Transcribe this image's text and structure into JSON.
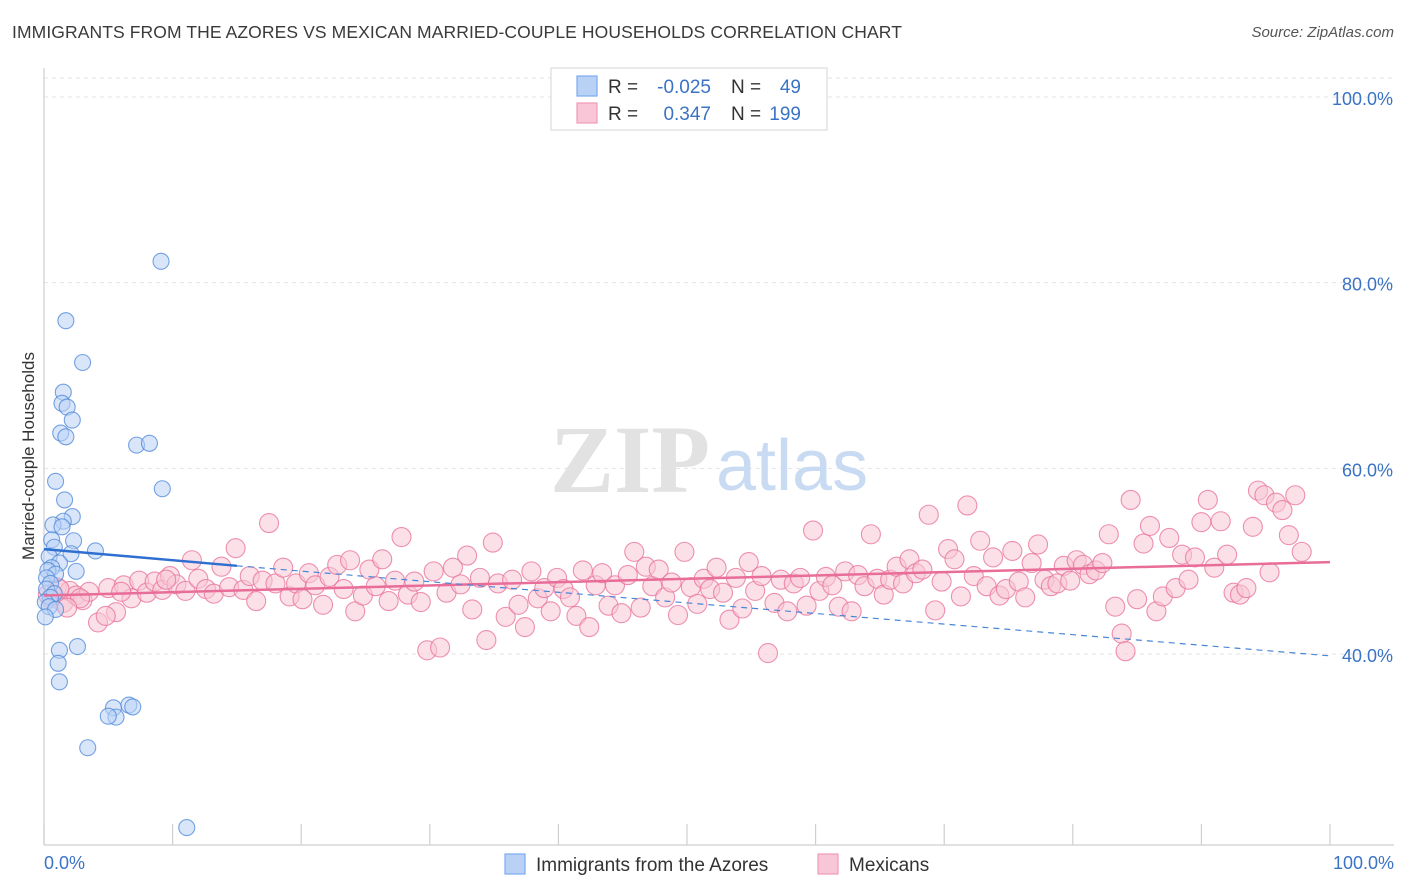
{
  "header": {
    "title": "IMMIGRANTS FROM THE AZORES VS MEXICAN MARRIED-COUPLE HOUSEHOLDS CORRELATION CHART",
    "source": "Source: ZipAtlas.com"
  },
  "watermark": {
    "zip": "ZIP",
    "atlas": "atlas"
  },
  "stats_legend": [
    {
      "series": "Immigrants from the Azores",
      "r_label": "R =",
      "r_value": "-0.025",
      "n_label": "N =",
      "n_value": "49",
      "color": "#7aaaf0",
      "fill": "#b9d1f5"
    },
    {
      "series": "Mexicans",
      "r_label": "R =",
      "r_value": "0.347",
      "n_label": "N =",
      "n_value": "199",
      "color": "#f09bb7",
      "fill": "#f8c6d6"
    }
  ],
  "chart_data": {
    "type": "scatter",
    "title": "IMMIGRANTS FROM THE AZORES VS MEXICAN MARRIED-COUPLE HOUSEHOLDS CORRELATION CHART",
    "xlabel": "",
    "ylabel": "Married-couple Households",
    "xlim": [
      0,
      100
    ],
    "ylim": [
      20,
      103
    ],
    "x_tick_labels": [
      "0.0%",
      "100.0%"
    ],
    "y_ticks": [
      40,
      60,
      80,
      100
    ],
    "y_tick_labels": [
      "40.0%",
      "60.0%",
      "80.0%",
      "100.0%"
    ],
    "grid": true,
    "legend": "top-center and bottom-center",
    "series": [
      {
        "name": "Immigrants from the Azores",
        "color": "#4a86d8",
        "fill": "#b9d1f5",
        "points": [
          [
            9.1,
            82.3
          ],
          [
            1.7,
            75.9
          ],
          [
            3.0,
            71.4
          ],
          [
            1.5,
            68.2
          ],
          [
            1.4,
            67.0
          ],
          [
            1.8,
            66.6
          ],
          [
            2.2,
            65.2
          ],
          [
            1.3,
            63.8
          ],
          [
            1.7,
            63.4
          ],
          [
            7.2,
            62.5
          ],
          [
            8.2,
            62.7
          ],
          [
            0.9,
            58.6
          ],
          [
            9.2,
            57.8
          ],
          [
            1.6,
            56.6
          ],
          [
            2.2,
            54.8
          ],
          [
            1.5,
            54.3
          ],
          [
            0.7,
            53.9
          ],
          [
            1.4,
            53.7
          ],
          [
            0.6,
            52.3
          ],
          [
            2.3,
            52.2
          ],
          [
            0.8,
            51.5
          ],
          [
            4.0,
            51.1
          ],
          [
            2.1,
            50.8
          ],
          [
            0.4,
            50.5
          ],
          [
            1.2,
            49.8
          ],
          [
            0.6,
            49.3
          ],
          [
            0.3,
            49.0
          ],
          [
            2.5,
            48.9
          ],
          [
            0.9,
            48.6
          ],
          [
            0.2,
            48.2
          ],
          [
            0.5,
            47.6
          ],
          [
            0.2,
            47.0
          ],
          [
            0.8,
            46.5
          ],
          [
            0.5,
            46.1
          ],
          [
            0.1,
            45.6
          ],
          [
            0.4,
            45.1
          ],
          [
            0.9,
            44.8
          ],
          [
            0.1,
            44.0
          ],
          [
            2.6,
            40.8
          ],
          [
            1.2,
            40.4
          ],
          [
            1.1,
            39.0
          ],
          [
            1.2,
            37.0
          ],
          [
            6.6,
            34.5
          ],
          [
            6.9,
            34.3
          ],
          [
            5.4,
            34.2
          ],
          [
            5.6,
            33.2
          ],
          [
            5.0,
            33.3
          ],
          [
            3.4,
            29.9
          ],
          [
            11.1,
            21.3
          ]
        ],
        "trend_solid": {
          "x": [
            0,
            15
          ],
          "y": [
            51.3,
            49.5
          ]
        },
        "trend_dashed": {
          "x": [
            15,
            100
          ],
          "y": [
            49.5,
            39.8
          ]
        }
      },
      {
        "name": "Mexicans",
        "color": "#e86d98",
        "fill": "#f8c6d6",
        "points": [
          [
            0.5,
            46.0
          ],
          [
            1.0,
            47.2
          ],
          [
            1.5,
            45.5
          ],
          [
            2.0,
            46.8
          ],
          [
            2.5,
            46.3
          ],
          [
            3.0,
            45.8
          ],
          [
            3.5,
            46.7
          ],
          [
            4.2,
            43.4
          ],
          [
            5.0,
            47.1
          ],
          [
            5.6,
            44.5
          ],
          [
            6.2,
            47.4
          ],
          [
            6.8,
            46.0
          ],
          [
            7.4,
            47.9
          ],
          [
            8.0,
            46.6
          ],
          [
            8.6,
            47.8
          ],
          [
            9.2,
            46.9
          ],
          [
            9.8,
            48.4
          ],
          [
            10.3,
            47.5
          ],
          [
            11.0,
            46.8
          ],
          [
            11.5,
            50.1
          ],
          [
            12.0,
            48.1
          ],
          [
            12.6,
            47.0
          ],
          [
            13.2,
            46.5
          ],
          [
            13.8,
            49.4
          ],
          [
            14.4,
            47.2
          ],
          [
            14.9,
            51.4
          ],
          [
            15.5,
            46.9
          ],
          [
            16.0,
            48.4
          ],
          [
            16.5,
            45.7
          ],
          [
            17.0,
            47.9
          ],
          [
            17.5,
            54.1
          ],
          [
            18.0,
            47.6
          ],
          [
            18.6,
            49.3
          ],
          [
            19.1,
            46.2
          ],
          [
            19.6,
            47.6
          ],
          [
            20.1,
            45.9
          ],
          [
            20.6,
            48.7
          ],
          [
            21.1,
            47.4
          ],
          [
            21.7,
            45.3
          ],
          [
            22.2,
            48.3
          ],
          [
            22.8,
            49.6
          ],
          [
            23.3,
            47.0
          ],
          [
            23.8,
            50.1
          ],
          [
            24.2,
            44.6
          ],
          [
            24.8,
            46.3
          ],
          [
            25.3,
            49.1
          ],
          [
            25.8,
            47.3
          ],
          [
            26.3,
            50.2
          ],
          [
            26.8,
            45.7
          ],
          [
            27.3,
            47.9
          ],
          [
            27.8,
            52.6
          ],
          [
            28.3,
            46.4
          ],
          [
            28.8,
            47.8
          ],
          [
            29.3,
            45.6
          ],
          [
            29.8,
            40.4
          ],
          [
            30.3,
            48.9
          ],
          [
            30.8,
            40.7
          ],
          [
            31.3,
            46.6
          ],
          [
            31.8,
            49.3
          ],
          [
            32.4,
            47.5
          ],
          [
            32.9,
            50.6
          ],
          [
            33.3,
            44.8
          ],
          [
            33.9,
            48.2
          ],
          [
            34.4,
            41.5
          ],
          [
            34.9,
            52.0
          ],
          [
            35.3,
            47.6
          ],
          [
            35.9,
            44.0
          ],
          [
            36.4,
            48.0
          ],
          [
            36.9,
            45.3
          ],
          [
            37.4,
            42.9
          ],
          [
            37.9,
            48.9
          ],
          [
            38.4,
            46.0
          ],
          [
            38.9,
            47.1
          ],
          [
            39.4,
            44.6
          ],
          [
            39.9,
            48.2
          ],
          [
            40.4,
            47.0
          ],
          [
            40.9,
            46.1
          ],
          [
            41.4,
            44.1
          ],
          [
            41.9,
            49.0
          ],
          [
            42.4,
            42.9
          ],
          [
            42.9,
            47.4
          ],
          [
            43.4,
            48.7
          ],
          [
            43.9,
            45.2
          ],
          [
            44.4,
            47.4
          ],
          [
            44.9,
            44.4
          ],
          [
            45.4,
            48.5
          ],
          [
            45.9,
            51.0
          ],
          [
            46.4,
            45.0
          ],
          [
            46.8,
            49.4
          ],
          [
            47.3,
            47.3
          ],
          [
            47.8,
            49.1
          ],
          [
            48.3,
            46.1
          ],
          [
            48.8,
            47.7
          ],
          [
            49.3,
            44.2
          ],
          [
            49.8,
            51.0
          ],
          [
            50.3,
            47.2
          ],
          [
            50.8,
            45.4
          ],
          [
            51.3,
            48.1
          ],
          [
            51.8,
            47.0
          ],
          [
            52.3,
            49.3
          ],
          [
            52.8,
            46.6
          ],
          [
            53.3,
            43.7
          ],
          [
            53.8,
            48.2
          ],
          [
            54.3,
            44.9
          ],
          [
            54.8,
            49.9
          ],
          [
            55.3,
            46.8
          ],
          [
            55.8,
            48.4
          ],
          [
            56.3,
            40.1
          ],
          [
            56.8,
            45.5
          ],
          [
            57.3,
            48.0
          ],
          [
            57.8,
            44.6
          ],
          [
            58.3,
            47.6
          ],
          [
            58.8,
            48.2
          ],
          [
            59.3,
            45.2
          ],
          [
            59.8,
            53.3
          ],
          [
            60.3,
            46.8
          ],
          [
            60.8,
            48.3
          ],
          [
            61.3,
            47.4
          ],
          [
            61.8,
            45.1
          ],
          [
            62.3,
            48.9
          ],
          [
            62.8,
            44.6
          ],
          [
            63.3,
            48.5
          ],
          [
            63.8,
            47.3
          ],
          [
            64.3,
            52.9
          ],
          [
            64.8,
            48.1
          ],
          [
            65.3,
            46.4
          ],
          [
            65.8,
            48.0
          ],
          [
            66.3,
            49.4
          ],
          [
            66.8,
            47.6
          ],
          [
            67.3,
            50.2
          ],
          [
            67.8,
            48.7
          ],
          [
            68.3,
            49.1
          ],
          [
            68.8,
            55.0
          ],
          [
            69.3,
            44.7
          ],
          [
            69.8,
            47.8
          ],
          [
            70.3,
            51.3
          ],
          [
            70.8,
            50.2
          ],
          [
            71.3,
            46.2
          ],
          [
            71.8,
            56.0
          ],
          [
            72.3,
            48.4
          ],
          [
            72.8,
            52.2
          ],
          [
            73.3,
            47.3
          ],
          [
            73.8,
            50.4
          ],
          [
            74.3,
            46.3
          ],
          [
            74.8,
            47.0
          ],
          [
            75.3,
            51.1
          ],
          [
            75.8,
            47.8
          ],
          [
            76.3,
            46.1
          ],
          [
            76.8,
            49.8
          ],
          [
            77.3,
            51.8
          ],
          [
            77.8,
            48.0
          ],
          [
            78.3,
            47.3
          ],
          [
            78.8,
            47.6
          ],
          [
            79.3,
            49.5
          ],
          [
            79.8,
            47.9
          ],
          [
            80.3,
            50.1
          ],
          [
            80.8,
            49.6
          ],
          [
            81.3,
            48.6
          ],
          [
            81.8,
            49.0
          ],
          [
            82.3,
            49.8
          ],
          [
            82.8,
            52.9
          ],
          [
            83.3,
            45.1
          ],
          [
            83.8,
            42.2
          ],
          [
            84.1,
            40.3
          ],
          [
            84.5,
            56.6
          ],
          [
            85.0,
            45.9
          ],
          [
            85.5,
            51.9
          ],
          [
            86.0,
            53.8
          ],
          [
            86.5,
            44.6
          ],
          [
            87.0,
            46.2
          ],
          [
            87.5,
            52.5
          ],
          [
            88.0,
            47.1
          ],
          [
            88.5,
            50.7
          ],
          [
            89.0,
            48.0
          ],
          [
            89.5,
            50.4
          ],
          [
            90.0,
            54.2
          ],
          [
            90.5,
            56.6
          ],
          [
            91.0,
            49.3
          ],
          [
            91.5,
            54.3
          ],
          [
            92.0,
            50.7
          ],
          [
            92.5,
            46.6
          ],
          [
            93.0,
            46.4
          ],
          [
            93.5,
            47.1
          ],
          [
            94.0,
            53.7
          ],
          [
            94.4,
            57.6
          ],
          [
            94.9,
            57.1
          ],
          [
            95.3,
            48.8
          ],
          [
            95.8,
            56.3
          ],
          [
            96.3,
            55.5
          ],
          [
            96.8,
            52.8
          ],
          [
            97.3,
            57.1
          ],
          [
            97.8,
            51.0
          ],
          [
            1.2,
            47.0
          ],
          [
            2.8,
            46.0
          ],
          [
            4.8,
            44.1
          ],
          [
            0.3,
            46.4
          ],
          [
            6.0,
            46.7
          ],
          [
            9.5,
            48.0
          ],
          [
            1.8,
            45.0
          ]
        ],
        "trend": {
          "x": [
            0,
            100
          ],
          "y": [
            46.3,
            49.9
          ]
        }
      }
    ]
  },
  "bottom_legend": [
    {
      "label": "Immigrants from the Azores",
      "color": "#7aaaf0",
      "fill": "#b9d1f5"
    },
    {
      "label": "Mexicans",
      "color": "#f09bb7",
      "fill": "#f8c6d6"
    }
  ]
}
